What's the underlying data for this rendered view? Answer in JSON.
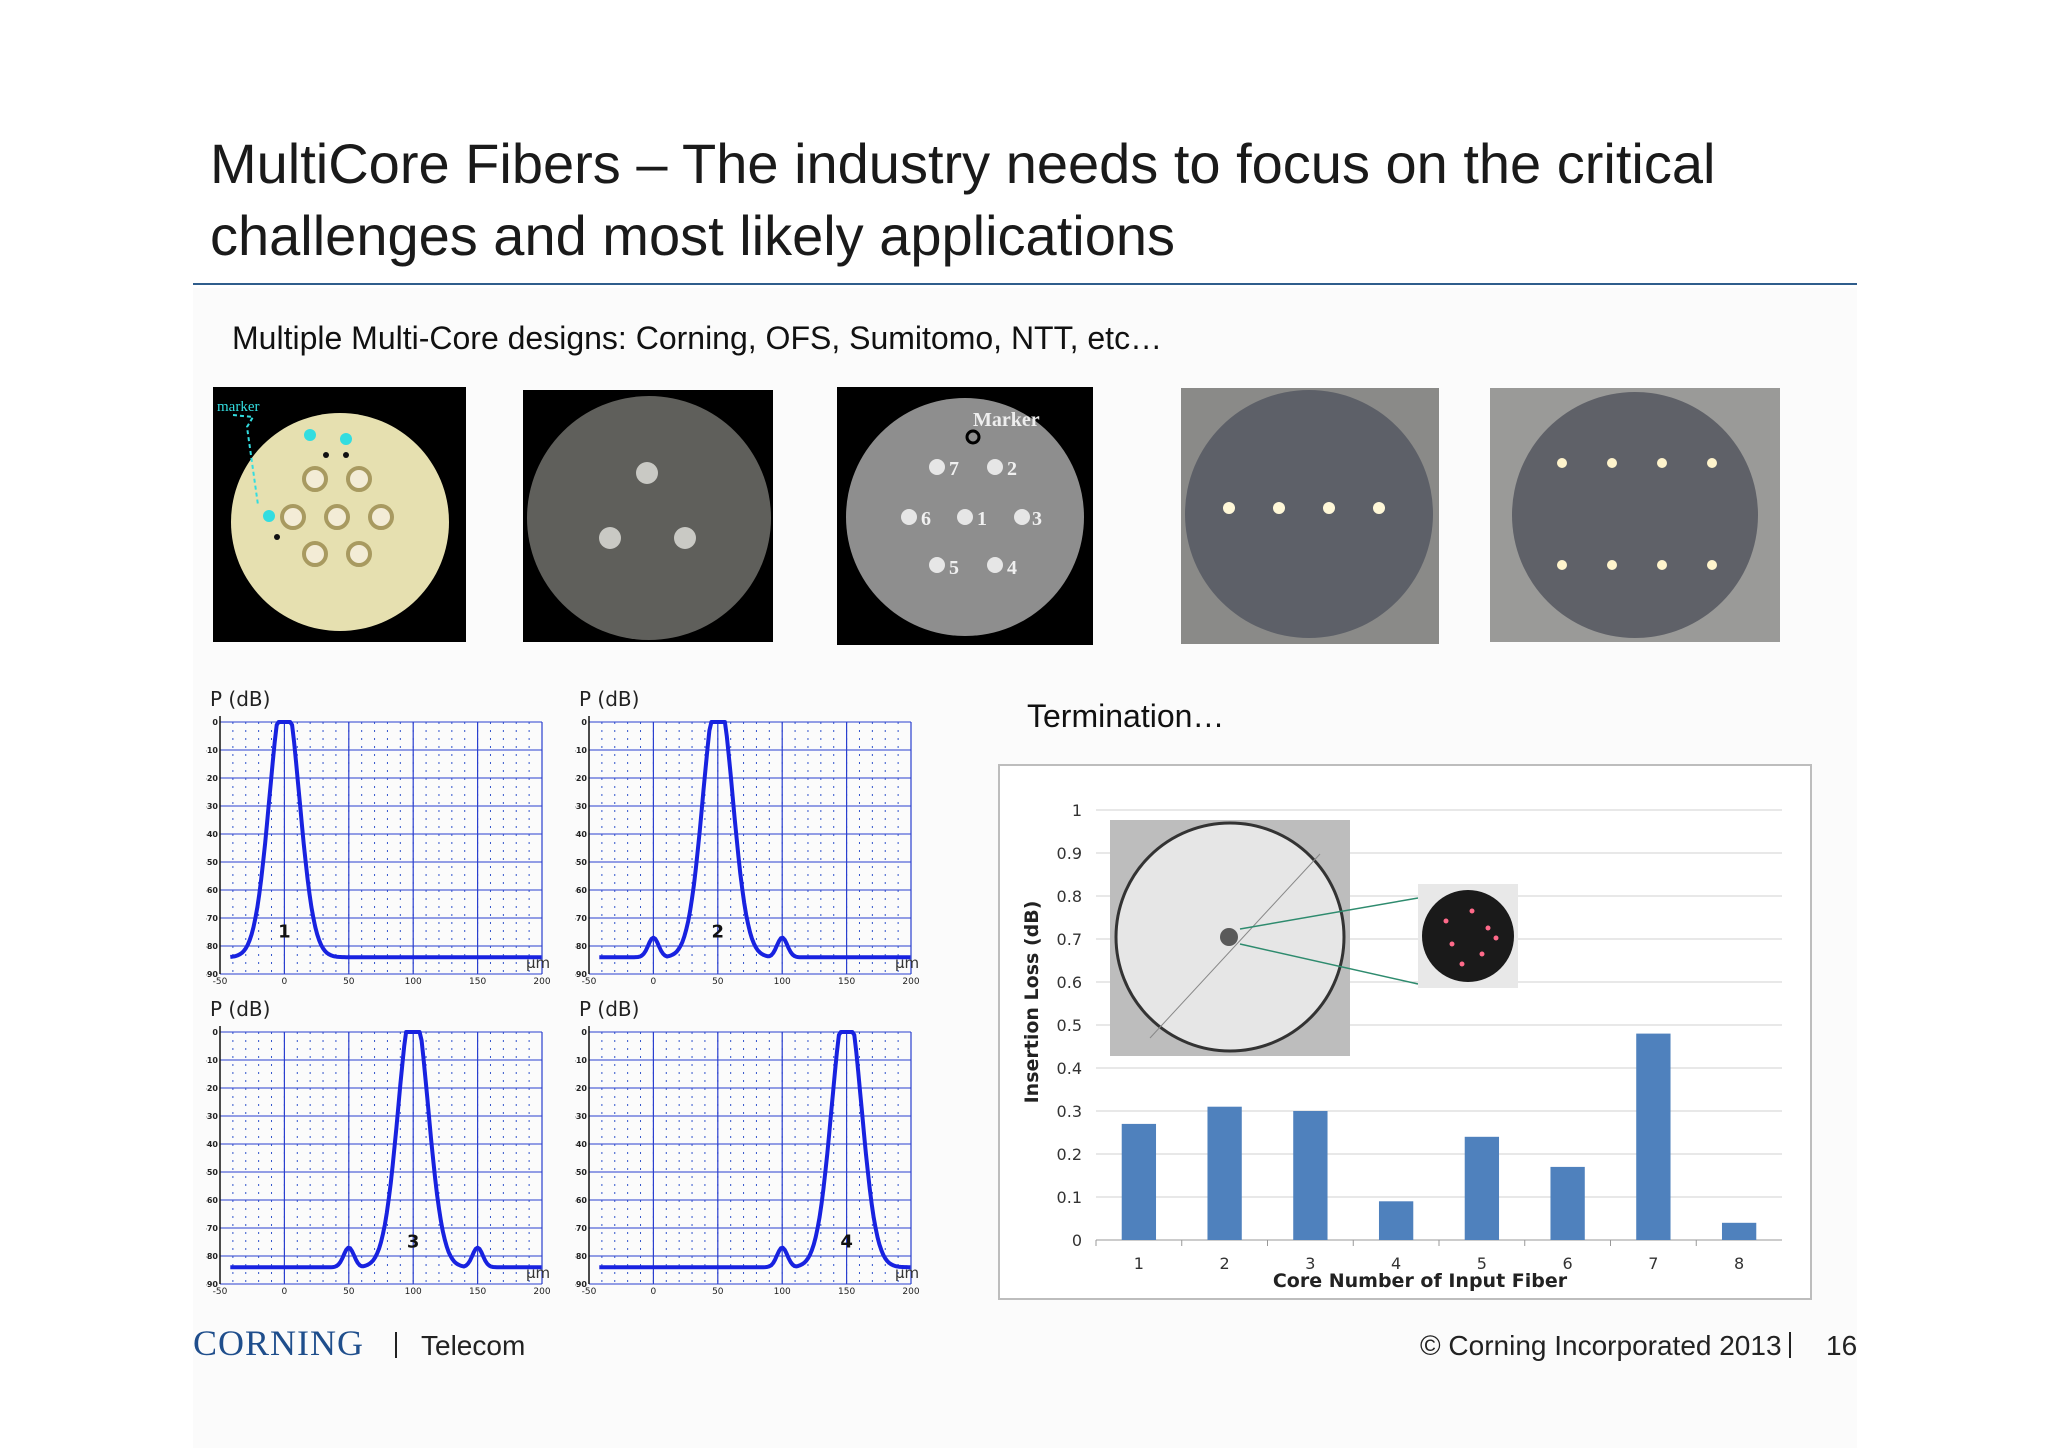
{
  "slide": {
    "title": "MultiCore Fibers – The industry needs to focus on the critical challenges and most likely applications",
    "subtitle": "Multiple Multi-Core designs: Corning, OFS, Sumitomo, NTT, etc…",
    "termination_label": "Termination…"
  },
  "fiber_images": {
    "image1_label": "marker",
    "image3_label": "Marker",
    "image3_core_numbers": [
      "7",
      "2",
      "6",
      "1",
      "3",
      "5",
      "4"
    ]
  },
  "profiles": {
    "y_axis_label": "P (dB)",
    "x_unit": "μm",
    "y_ticks": [
      "0",
      "-10",
      "-20",
      "-30",
      "-40",
      "-50",
      "-60",
      "-70",
      "-80",
      "-90"
    ],
    "x_ticks": [
      "-50",
      "0",
      "50",
      "100",
      "150",
      "200"
    ],
    "panels": [
      {
        "label": "1",
        "peak_um": 0,
        "side_lobes": []
      },
      {
        "label": "2",
        "peak_um": 50,
        "side_lobes": [
          0,
          100
        ]
      },
      {
        "label": "3",
        "peak_um": 100,
        "side_lobes": [
          50,
          150
        ]
      },
      {
        "label": "4",
        "peak_um": 150,
        "side_lobes": [
          100
        ]
      }
    ]
  },
  "chart_data": {
    "type": "bar",
    "xlabel": "Core Number of Input Fiber",
    "ylabel": "Insertion Loss (dB)",
    "categories": [
      "1",
      "2",
      "3",
      "4",
      "5",
      "6",
      "7",
      "8"
    ],
    "values": [
      0.27,
      0.31,
      0.3,
      0.09,
      0.24,
      0.17,
      0.48,
      0.04
    ],
    "ylim": [
      0,
      1
    ],
    "yticks": [
      "0",
      "0.1",
      "0.2",
      "0.3",
      "0.4",
      "0.5",
      "0.6",
      "0.7",
      "0.8",
      "0.9",
      "1"
    ],
    "bar_color": "#4f81bd",
    "grid": true
  },
  "footer": {
    "logo": "CORNING",
    "division": "Telecom",
    "copyright": "© Corning Incorporated 2013",
    "page": "16"
  }
}
